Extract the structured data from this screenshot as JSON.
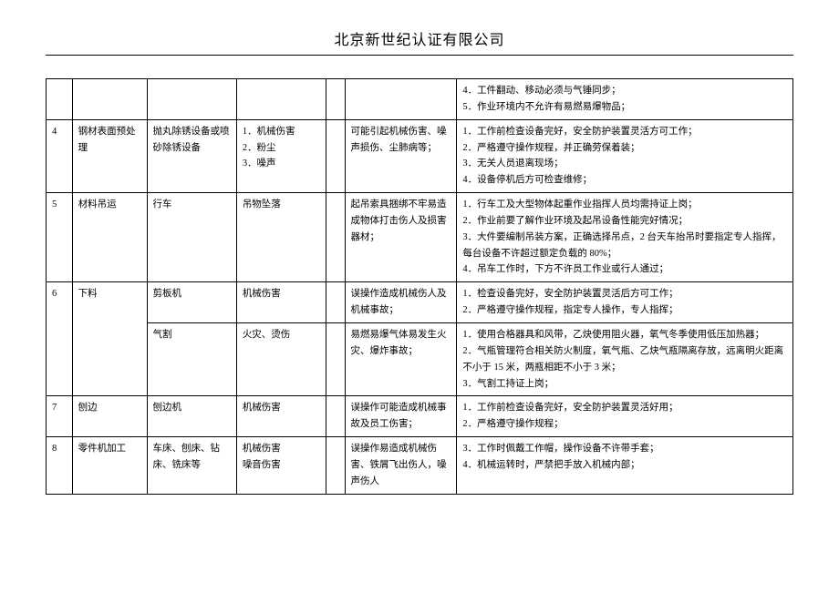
{
  "title": "北京新世纪认证有限公司",
  "rows": [
    {
      "idx": "",
      "process": "",
      "equipment": "",
      "hazard": "",
      "risk": "",
      "controls": [
        "4．工件翻动、移动必须与气锤同步；",
        "5．作业环境内不允许有易燃易爆物品；"
      ]
    },
    {
      "idx": "4",
      "process": "钢材表面预处理",
      "equipment": "抛丸除锈设备或喷砂除锈设备",
      "hazard": "1．机械伤害\n2．粉尘\n3．噪声",
      "risk": "可能引起机械伤害、噪声损伤、尘肺病等；",
      "controls": [
        "1．工作前检查设备完好，安全防护装置灵活方可工作；",
        "2．严格遵守操作规程，并正确劳保着装；",
        "3．无关人员退离现场；",
        "4．设备停机后方可检查维修；"
      ]
    },
    {
      "idx": "5",
      "process": "材料吊运",
      "equipment": "行车",
      "hazard": "吊物坠落",
      "risk": "起吊索具捆绑不牢易造成物体打击伤人及损害器材；",
      "controls": [
        "1．行车工及大型物体起重作业指挥人员均需持证上岗；",
        "2．作业前要了解作业环境及起吊设备性能完好情况；",
        "3．大件要编制吊装方案，正确选择吊点，2 台天车抬吊时要指定专人指挥，每台设备不许超过额定负载的 80%；",
        "4．吊车工作时，下方不许员工作业或行人通过；"
      ]
    },
    {
      "idx": "6",
      "process": "下料",
      "equipment": "剪板机",
      "hazard": "机械伤害",
      "risk": "误操作造成机械伤人及机械事故；",
      "controls": [
        "1．检查设备完好，安全防护装置灵活后方可工作；",
        "2．严格遵守操作规程，指定专人操作，专人指挥；"
      ]
    },
    {
      "idx": "",
      "process": "",
      "equipment": "气割",
      "hazard": "火灾、烫伤",
      "risk": "易燃易爆气体易发生火灾、爆炸事故；",
      "controls": [
        "1．使用合格器具和风带，乙炔使用阻火器，氧气冬季使用低压加热器；",
        "2．气瓶管理符合相关防火制度，氧气瓶、乙炔气瓶隔离存放，远离明火距离不小于 15 米，两瓶相距不小于 3 米；",
        "3．气割工持证上岗；"
      ]
    },
    {
      "idx": "7",
      "process": "刨边",
      "equipment": "刨边机",
      "hazard": "机械伤害",
      "risk": "误操作可能造成机械事故及员工伤害；",
      "controls": [
        "1．工作前检查设备完好，安全防护装置灵活好用；",
        "2．严格遵守操作规程；"
      ]
    },
    {
      "idx": "8",
      "process": "零件机加工",
      "equipment": "车床、刨床、钻床、铣床等",
      "hazard": "机械伤害\n噪音伤害",
      "risk": "误操作易造成机械伤害、铁屑飞出伤人，噪声伤人",
      "controls": [
        "3．工作时佩戴工作帽，操作设备不许带手套；",
        "4．机械运转时，严禁把手放入机械内部；"
      ]
    }
  ]
}
